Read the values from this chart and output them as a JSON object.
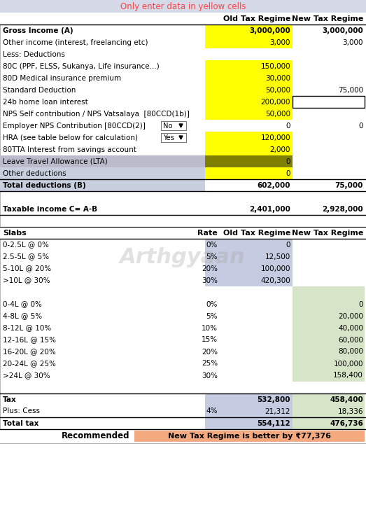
{
  "title": "Only enter data in yellow cells",
  "title_color": "#FF4444",
  "header_bg": "#D6D9E8",
  "col_headers": [
    "",
    "Old Tax Regime",
    "New Tax Regime"
  ],
  "rows": [
    {
      "label": "Gross Income (A)",
      "old": "3,000,000",
      "new": "3,000,000",
      "old_bg": "#FFFF00",
      "new_bg": null,
      "bold": true,
      "label_bold": true
    },
    {
      "label": "Other income (interest, freelancing etc)",
      "old": "3,000",
      "new": "3,000",
      "old_bg": "#FFFF00",
      "new_bg": null,
      "bold": false,
      "label_bold": false
    },
    {
      "label": "Less: Deductions",
      "old": "",
      "new": "",
      "old_bg": null,
      "new_bg": null,
      "bold": false,
      "label_bold": false
    },
    {
      "label": "80C (PPF, ELSS, Sukanya, Life insurance...)",
      "old": "150,000",
      "new": "",
      "old_bg": "#FFFF00",
      "new_bg": null,
      "bold": false,
      "label_bold": false
    },
    {
      "label": "80D Medical insurance premium",
      "old": "30,000",
      "new": "",
      "old_bg": "#FFFF00",
      "new_bg": null,
      "bold": false,
      "label_bold": false
    },
    {
      "label": "Standard Deduction",
      "old": "50,000",
      "new": "75,000",
      "old_bg": "#FFFF00",
      "new_bg": null,
      "bold": false,
      "label_bold": false
    },
    {
      "label": "24b home loan interest",
      "old": "200,000",
      "new": "",
      "old_bg": "#FFFF00",
      "new_bg": "#FFFFFF",
      "bold": false,
      "label_bold": false,
      "new_border": true
    },
    {
      "label": "NPS Self contribution / NPS Vatsalaya  [80CCD(1b)]",
      "old": "50,000",
      "new": "",
      "old_bg": "#FFFF00",
      "new_bg": null,
      "bold": false,
      "label_bold": false
    },
    {
      "label": "Employer NPS Contribution [80CCD(2)]",
      "old": "0",
      "new": "0",
      "old_bg": null,
      "new_bg": null,
      "bold": false,
      "label_bold": false,
      "dropdown": "No"
    },
    {
      "label": "HRA (see table below for calculation)",
      "old": "120,000",
      "new": "",
      "old_bg": "#FFFF00",
      "new_bg": null,
      "bold": false,
      "label_bold": false,
      "dropdown": "Yes"
    },
    {
      "label": "80TTA Interest from savings account",
      "old": "2,000",
      "new": "",
      "old_bg": "#FFFF00",
      "new_bg": null,
      "bold": false,
      "label_bold": false
    },
    {
      "label": "Leave Travel Allowance (LTA)",
      "old": "0",
      "new": "",
      "old_bg": "#808000",
      "new_bg": null,
      "bold": false,
      "label_bold": false,
      "label_bg": "#BBBBCC"
    },
    {
      "label": "Other deductions",
      "old": "0",
      "new": "",
      "old_bg": "#FFFF00",
      "new_bg": null,
      "bold": false,
      "label_bold": false,
      "label_bg": "#C8D0E0"
    },
    {
      "label": "Total deductions (B)",
      "old": "602,000",
      "new": "75,000",
      "old_bg": null,
      "new_bg": null,
      "bold": true,
      "label_bold": true,
      "label_bg": "#C8D0E0",
      "border_top": true,
      "border_bottom": true
    },
    {
      "label": "",
      "old": "",
      "new": "",
      "old_bg": null,
      "new_bg": null,
      "bold": false,
      "label_bold": false
    },
    {
      "label": "Taxable income C= A-B",
      "old": "2,401,000",
      "new": "2,928,000",
      "old_bg": null,
      "new_bg": null,
      "bold": true,
      "label_bold": true,
      "border_bottom": true
    },
    {
      "label": "",
      "old": "",
      "new": "",
      "old_bg": null,
      "new_bg": null,
      "bold": false,
      "label_bold": false
    }
  ],
  "slab_header": {
    "label": "Slabs",
    "rate": "Rate",
    "old": "Old Tax Regime",
    "new": "New Tax Regime"
  },
  "old_slabs": [
    {
      "label": "0-2.5L @ 0%",
      "rate": "0%",
      "old": "0",
      "new": ""
    },
    {
      "label": "2.5-5L @ 5%",
      "rate": "5%",
      "old": "12,500",
      "new": ""
    },
    {
      "label": "5-10L @ 20%",
      "rate": "20%",
      "old": "100,000",
      "new": ""
    },
    {
      "label": ">10L @ 30%",
      "rate": "30%",
      "old": "420,300",
      "new": ""
    }
  ],
  "new_slabs": [
    {
      "label": "0-4L @ 0%",
      "rate": "0%",
      "old": "",
      "new": "0"
    },
    {
      "label": "4-8L @ 5%",
      "rate": "5%",
      "old": "",
      "new": "20,000"
    },
    {
      "label": "8-12L @ 10%",
      "rate": "10%",
      "old": "",
      "new": "40,000"
    },
    {
      "label": "12-16L @ 15%",
      "rate": "15%",
      "old": "",
      "new": "60,000"
    },
    {
      "label": "16-20L @ 20%",
      "rate": "20%",
      "old": "",
      "new": "80,000"
    },
    {
      "label": "20-24L @ 25%",
      "rate": "25%",
      "old": "",
      "new": "100,000"
    },
    {
      "label": ">24L @ 30%",
      "rate": "30%",
      "old": "",
      "new": "158,400"
    }
  ],
  "footer_rows": [
    {
      "label": "Tax",
      "rate": "",
      "old": "532,800",
      "new": "458,400",
      "bold": true,
      "border_top": true
    },
    {
      "label": "Plus: Cess",
      "rate": "4%",
      "old": "21,312",
      "new": "18,336",
      "bold": false
    },
    {
      "label": "Total tax",
      "rate": "",
      "old": "554,112",
      "new": "476,736",
      "bold": true,
      "border_top": true,
      "border_bottom": true
    }
  ],
  "recommendation": "New Tax Regime is better by ₹77,376",
  "watermark": "Arthgyaan",
  "bg_old_col": "#C5CBE0",
  "bg_new_col": "#D6E4C8",
  "yellow": "#FFFF00",
  "header_color": "#D6D9E8",
  "fig_w": 5.23,
  "fig_h": 7.37,
  "dpi": 100
}
